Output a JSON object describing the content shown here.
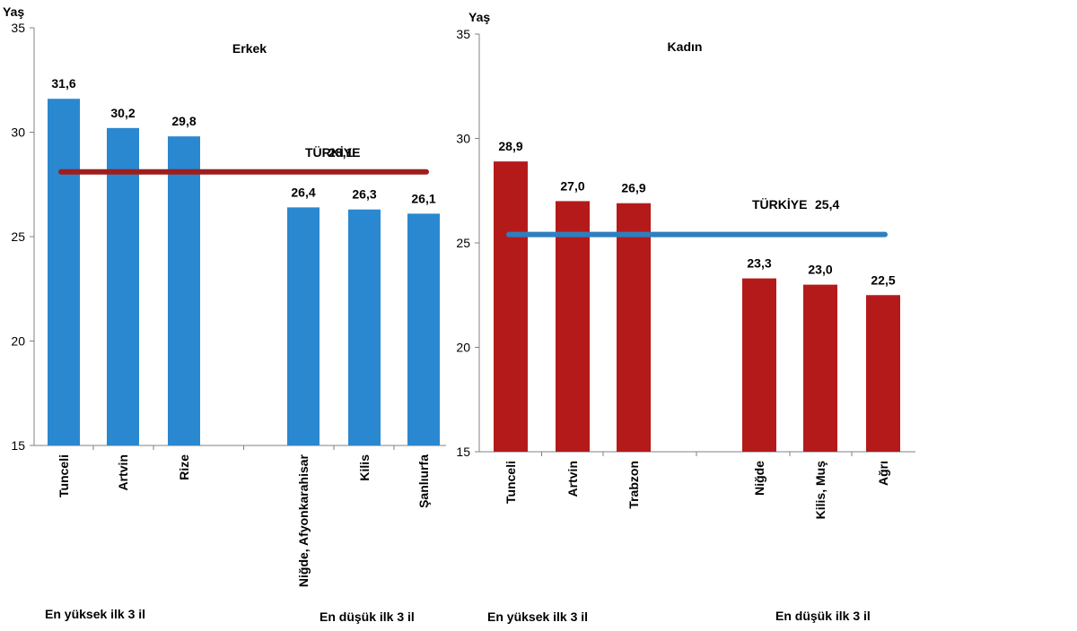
{
  "chart_data": [
    {
      "type": "bar",
      "title": "Erkek",
      "ylabel": "Yaş",
      "ylim": [
        15,
        35
      ],
      "yticks": [
        15,
        20,
        25,
        30,
        35
      ],
      "categories": [
        "Tunceli",
        "Artvin",
        "Rize",
        "Niğde, Afyonkarahisar",
        "Kilis",
        "Şanlıurfa"
      ],
      "values": [
        31.6,
        30.2,
        29.8,
        26.4,
        26.3,
        26.1
      ],
      "value_labels": [
        "31,6",
        "30,2",
        "29,8",
        "26,4",
        "26,3",
        "26,1"
      ],
      "bar_color": "#2a88d0",
      "reference_line": {
        "label": "TÜRKİYE",
        "value": 28.1,
        "value_label": "28,1",
        "color": "#9e1e1e"
      },
      "groups": [
        "En yüksek ilk 3 il",
        "En düşük ilk 3 il"
      ],
      "grid": false
    },
    {
      "type": "bar",
      "title": "Kadın",
      "ylabel": "Yaş",
      "ylim": [
        15,
        35
      ],
      "yticks": [
        15,
        20,
        25,
        30,
        35
      ],
      "categories": [
        "Tunceli",
        "Artvin",
        "Trabzon",
        "Niğde",
        "Kilis, Muş",
        "Ağrı"
      ],
      "values": [
        28.9,
        27.0,
        26.9,
        23.3,
        23.0,
        22.5
      ],
      "value_labels": [
        "28,9",
        "27,0",
        "26,9",
        "23,3",
        "23,0",
        "22,5"
      ],
      "bar_color": "#b51a1a",
      "reference_line": {
        "label": "TÜRKİYE",
        "value": 25.4,
        "value_label": "25,4",
        "color": "#2e7fbf"
      },
      "groups": [
        "En yüksek ilk 3 il",
        "En düşük ilk 3 il"
      ],
      "grid": false
    }
  ]
}
